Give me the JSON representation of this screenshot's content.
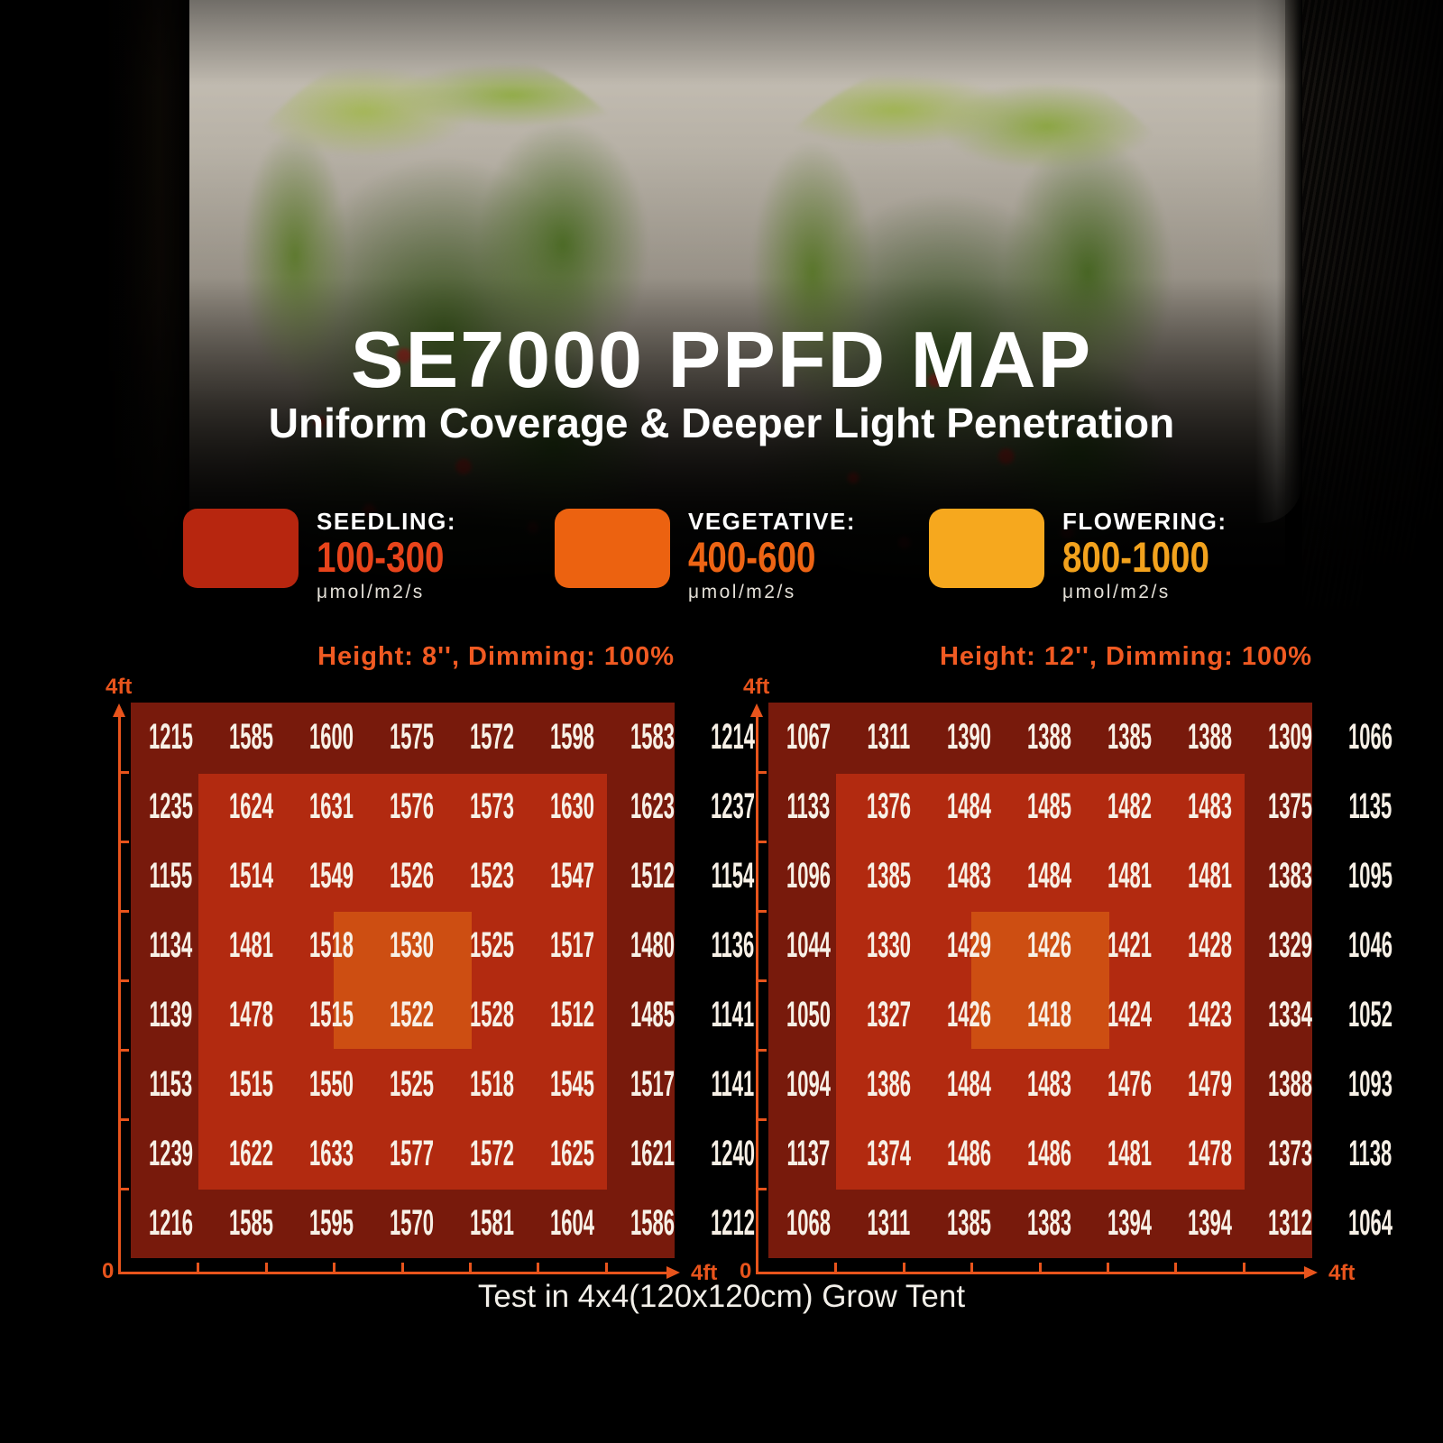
{
  "title": "SE7000 PPFD MAP",
  "subtitle": "Uniform Coverage & Deeper Light Penetration",
  "legend": [
    {
      "stage": "SEEDLING:",
      "range": "100-300",
      "unit": "μmol/m2/s",
      "swatch": "#b7260f",
      "rangeColor": "#e8441b"
    },
    {
      "stage": "VEGETATIVE:",
      "range": "400-600",
      "unit": "μmol/m2/s",
      "swatch": "#ec6210",
      "rangeColor": "#ed6414"
    },
    {
      "stage": "FLOWERING:",
      "range": "800-1000",
      "unit": "μmol/m2/s",
      "swatch": "#f6a81e",
      "rangeColor": "#f2a21d"
    }
  ],
  "caption": "Test in 4x4(120x120cm) Grow Tent",
  "colors": {
    "outer_zone": "#781a0c",
    "inner_zone": "#b22a10",
    "center_zone": "#cd4e12",
    "axis": "#e8541c",
    "header": "#f05a22"
  },
  "chart_data": [
    {
      "type": "heatmap",
      "title": "Height: 8'', Dimming: 100%",
      "axis": {
        "y_top": "4ft",
        "origin": "0",
        "x_right": "4ft"
      },
      "x_range_ft": [
        0,
        4
      ],
      "y_range_ft": [
        0,
        4
      ],
      "unit": "μmol/m2/s",
      "rows": [
        [
          1215,
          1585,
          1600,
          1575,
          1572,
          1598,
          1583,
          1214
        ],
        [
          1235,
          1624,
          1631,
          1576,
          1573,
          1630,
          1623,
          1237
        ],
        [
          1155,
          1514,
          1549,
          1526,
          1523,
          1547,
          1512,
          1154
        ],
        [
          1134,
          1481,
          1518,
          1530,
          1525,
          1517,
          1480,
          1136
        ],
        [
          1139,
          1478,
          1515,
          1522,
          1528,
          1512,
          1485,
          1141
        ],
        [
          1153,
          1515,
          1550,
          1525,
          1518,
          1545,
          1517,
          1141
        ],
        [
          1239,
          1622,
          1633,
          1577,
          1572,
          1625,
          1621,
          1240
        ],
        [
          1216,
          1585,
          1595,
          1570,
          1581,
          1604,
          1586,
          1212
        ]
      ]
    },
    {
      "type": "heatmap",
      "title": "Height: 12'', Dimming: 100%",
      "axis": {
        "y_top": "4ft",
        "origin": "0",
        "x_right": "4ft"
      },
      "x_range_ft": [
        0,
        4
      ],
      "y_range_ft": [
        0,
        4
      ],
      "unit": "μmol/m2/s",
      "rows": [
        [
          1067,
          1311,
          1390,
          1388,
          1385,
          1388,
          1309,
          1066
        ],
        [
          1133,
          1376,
          1484,
          1485,
          1482,
          1483,
          1375,
          1135
        ],
        [
          1096,
          1385,
          1483,
          1484,
          1481,
          1481,
          1383,
          1095
        ],
        [
          1044,
          1330,
          1429,
          1426,
          1421,
          1428,
          1329,
          1046
        ],
        [
          1050,
          1327,
          1426,
          1418,
          1424,
          1423,
          1334,
          1052
        ],
        [
          1094,
          1386,
          1484,
          1483,
          1476,
          1479,
          1388,
          1093
        ],
        [
          1137,
          1374,
          1486,
          1486,
          1481,
          1478,
          1373,
          1138
        ],
        [
          1068,
          1311,
          1385,
          1383,
          1394,
          1394,
          1312,
          1064
        ]
      ]
    }
  ]
}
